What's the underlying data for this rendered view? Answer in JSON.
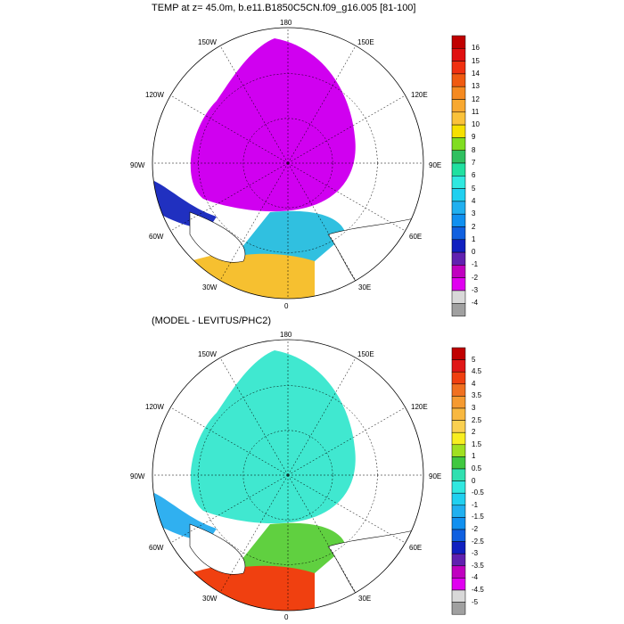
{
  "panels": [
    {
      "title": "TEMP at z=  45.0m, b.e11.B1850C5CN.f09_g16.005 [81-100]",
      "meridian_labels": [
        "180",
        "150W",
        "150E",
        "120W",
        "120E",
        "90W",
        "90E",
        "60W",
        "60E",
        "30W",
        "30E",
        "0"
      ],
      "colorbar": {
        "labels": [
          "16",
          "15",
          "14",
          "13",
          "12",
          "11",
          "10",
          "9",
          "8",
          "7",
          "6",
          "5",
          "4",
          "3",
          "2",
          "1",
          "0",
          "-1",
          "-2",
          "-3",
          "-4"
        ],
        "colors": [
          "#c00000",
          "#e01010",
          "#f03010",
          "#f05a10",
          "#f58a20",
          "#f8a830",
          "#fac23a",
          "#f6e000",
          "#80dd20",
          "#30c060",
          "#20e0a0",
          "#30e8e0",
          "#20d0f0",
          "#20b0f0",
          "#1090f0",
          "#1060e0",
          "#1020c0",
          "#6020b0",
          "#c000c0",
          "#e000f0",
          "#d8d8d8",
          "#a0a0a0"
        ]
      },
      "fill_colors": {
        "ocean": "#d000f0",
        "atlantic_warm": "#f6c030",
        "atlantic_mid": "#30c0e0",
        "atlantic_cold": "#2030c0"
      }
    },
    {
      "title": "(MODEL - LEVITUS/PHC2)",
      "meridian_labels": [
        "180",
        "150W",
        "150E",
        "120W",
        "120E",
        "90W",
        "90E",
        "60W",
        "60E",
        "30W",
        "30E",
        "0"
      ],
      "colorbar": {
        "labels": [
          "5",
          "4.5",
          "4",
          "3.5",
          "3",
          "2.5",
          "2",
          "1.5",
          "1",
          "0.5",
          "0",
          "-0.5",
          "-1",
          "-1.5",
          "-2",
          "-2.5",
          "-3",
          "-3.5",
          "-4",
          "-4.5",
          "-5"
        ],
        "colors": [
          "#c00000",
          "#e01818",
          "#f04010",
          "#f07020",
          "#f59a30",
          "#f8b840",
          "#fad050",
          "#f8ee20",
          "#a0e020",
          "#40c840",
          "#30e0b0",
          "#30e8e0",
          "#20d0f0",
          "#20b0f0",
          "#1090f0",
          "#1060e0",
          "#1020c0",
          "#6020b0",
          "#c000c0",
          "#e000f0",
          "#d8d8d8",
          "#a0a0a0"
        ]
      },
      "fill_colors": {
        "ocean": "#40e8d0",
        "greenland_sea": "#30b0f0",
        "atlantic_warm": "#f04010",
        "positive": "#60d040"
      }
    }
  ]
}
